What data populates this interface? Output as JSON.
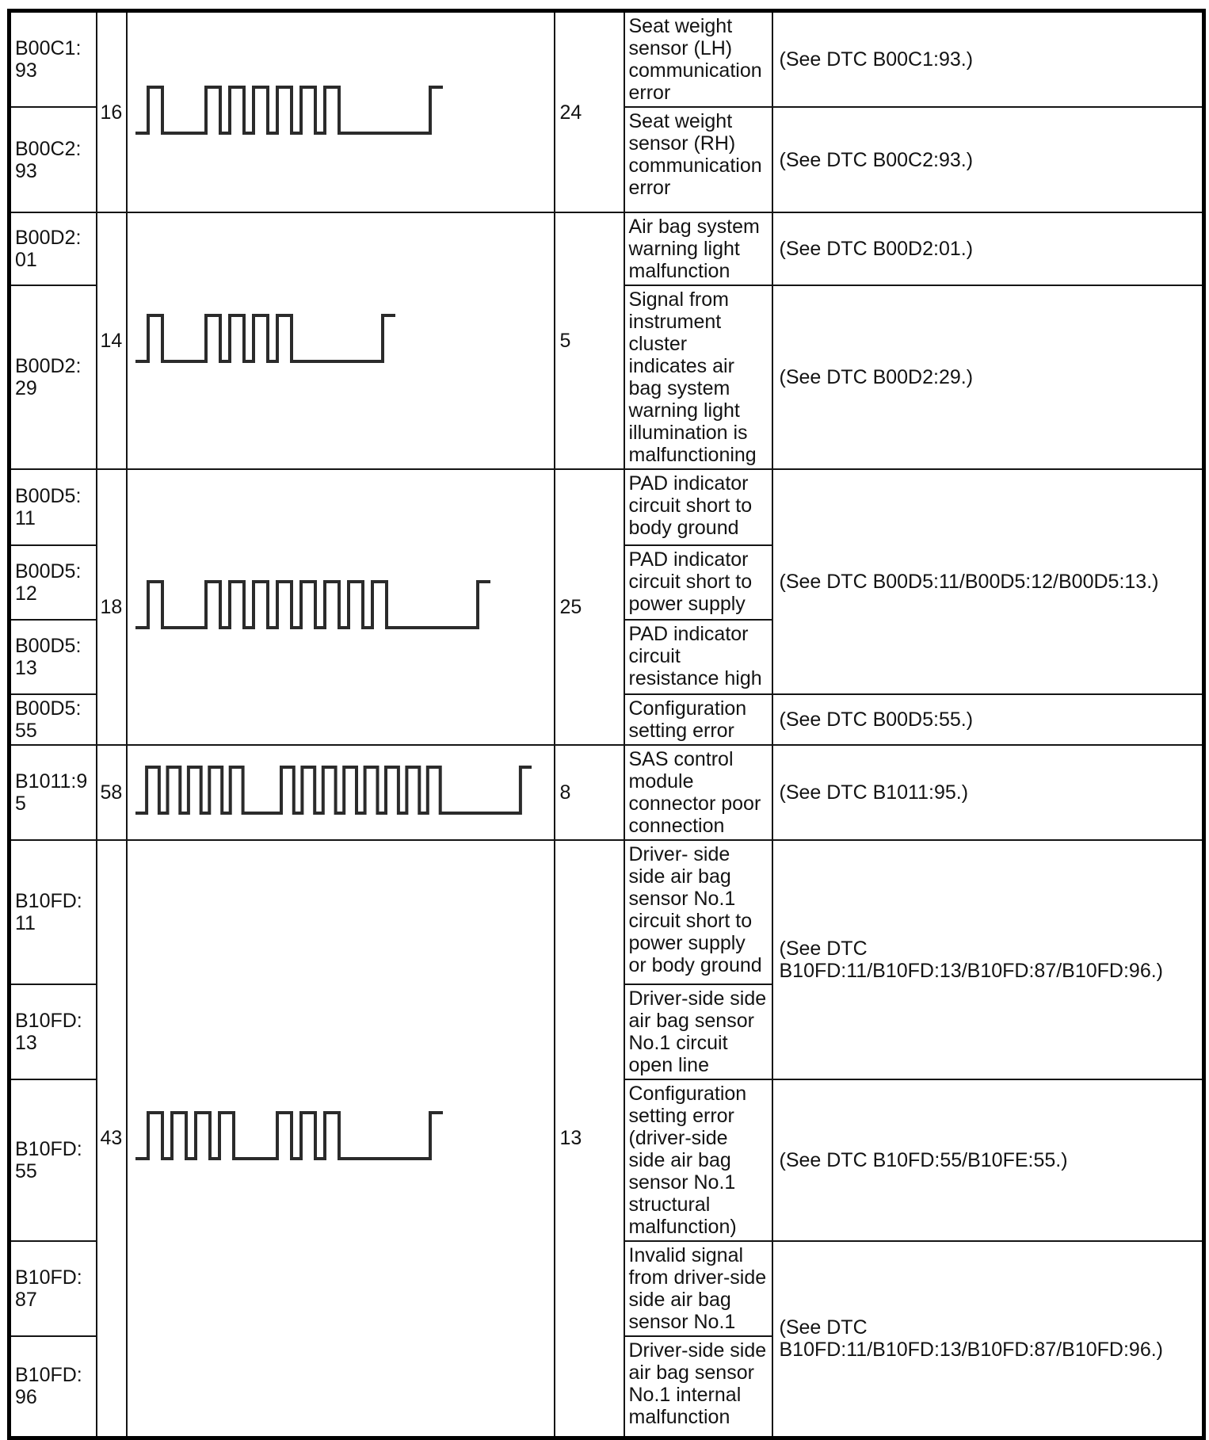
{
  "waveform_style": {
    "stroke_color": "#2b2b2b"
  },
  "table": {
    "groups": [
      {
        "flash_code": "16",
        "count": "24",
        "waveform": {
          "type": "flash-pattern",
          "pulses": [
            1,
            6
          ]
        },
        "rows": [
          {
            "dtc": "B00C1:93",
            "description": "Seat weight sensor (LH) communication error",
            "see": "(See DTC B00C1:93.)"
          },
          {
            "dtc": "B00C2:93",
            "description": "Seat weight sensor (RH) communication error",
            "see": "(See DTC B00C2:93.)"
          }
        ]
      },
      {
        "flash_code": "14",
        "count": "5",
        "waveform": {
          "type": "flash-pattern",
          "pulses": [
            1,
            4
          ]
        },
        "rows": [
          {
            "dtc": "B00D2:01",
            "description": "Air bag system warning light malfunction",
            "see": "(See DTC B00D2:01.)"
          },
          {
            "dtc": "B00D2:29",
            "description": "Signal from instrument cluster indicates air bag system warning light illumination is malfunctioning",
            "see": "(See DTC B00D2:29.)"
          }
        ]
      },
      {
        "flash_code": "18",
        "count": "25",
        "waveform": {
          "type": "flash-pattern",
          "pulses": [
            1,
            8
          ]
        },
        "rows": [
          {
            "dtc": "B00D5:11",
            "description": "PAD indicator circuit short to body ground",
            "see": "(See DTC B00D5:11/B00D5:12/B00D5:13.)"
          },
          {
            "dtc": "B00D5:12",
            "description": "PAD indicator circuit short to power supply"
          },
          {
            "dtc": "B00D5:13",
            "description": "PAD indicator circuit resistance high"
          },
          {
            "dtc": "B00D5:55",
            "description": "Configuration setting error",
            "see": "(See DTC B00D5:55.)"
          }
        ]
      },
      {
        "flash_code": "58",
        "count": "8",
        "waveform": {
          "type": "flash-pattern",
          "pulses": [
            5,
            8
          ]
        },
        "rows": [
          {
            "dtc": "B1011:95",
            "description": "SAS control module connector poor connection",
            "see": "(See DTC B1011:95.)"
          }
        ]
      },
      {
        "flash_code": "43",
        "count": "13",
        "waveform": {
          "type": "flash-pattern",
          "pulses": [
            4,
            3
          ]
        },
        "rows": [
          {
            "dtc": "B10FD:11",
            "description": "Driver- side side air bag sensor No.1 circuit short to power supply or body ground",
            "see": "(See DTC B10FD:11/B10FD:13/B10FD:87/B10FD:96.)"
          },
          {
            "dtc": "B10FD:13",
            "description": "Driver-side side air bag sensor No.1 circuit open line"
          },
          {
            "dtc": "B10FD:55",
            "description": "Configuration setting error (driver-side side air bag sensor No.1 structural malfunction)",
            "see": "(See DTC B10FD:55/B10FE:55.)"
          },
          {
            "dtc": "B10FD:87",
            "description": "Invalid signal from driver-side side air bag sensor No.1",
            "see": "(See DTC B10FD:11/B10FD:13/B10FD:87/B10FD:96.)"
          },
          {
            "dtc": "B10FD:96",
            "description": "Driver-side side air bag sensor No.1 internal malfunction"
          }
        ]
      }
    ]
  }
}
